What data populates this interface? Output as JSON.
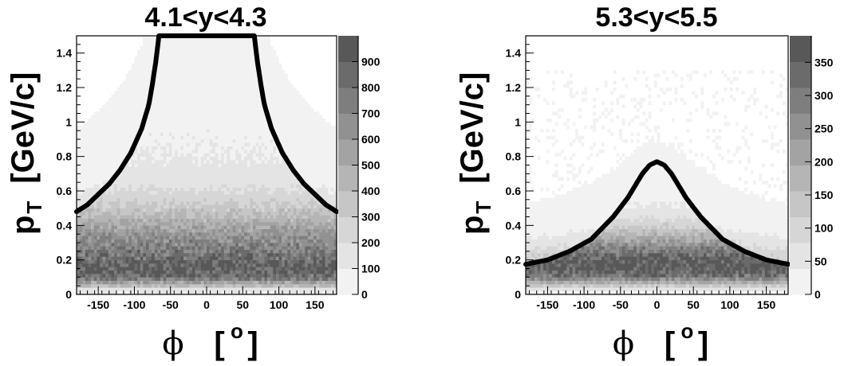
{
  "chart_data": [
    {
      "type": "heatmap",
      "title": "4.1<y<4.3",
      "xlabel_symbol": "ϕ",
      "xlabel_unit_open": "[",
      "xlabel_unit_deg": "o",
      "xlabel_unit_close": "]",
      "ylabel_main": "p",
      "ylabel_sub": "T",
      "ylabel_unit": "[GeV/c]",
      "xlim": [
        -180,
        180
      ],
      "ylim": [
        0,
        1.5
      ],
      "x_ticks": [
        -150,
        -100,
        -50,
        0,
        50,
        100,
        150
      ],
      "y_ticks": [
        0,
        0.2,
        0.4,
        0.6,
        0.8,
        1,
        1.2,
        1.4
      ],
      "y_tick_labels": [
        "0",
        "0.2",
        "0.4",
        "0.6",
        "0.8",
        "1",
        "1.2",
        "1.4"
      ],
      "x_tick_labels": [
        "-150",
        "-100",
        "-50",
        "0",
        "50",
        "100",
        "150"
      ],
      "z_range": [
        0,
        1000
      ],
      "z_ticks": [
        0,
        100,
        200,
        300,
        400,
        500,
        600,
        700,
        800,
        900
      ],
      "z_tick_labels": [
        "0",
        "100",
        "200",
        "300",
        "400",
        "500",
        "600",
        "700",
        "800",
        "900"
      ],
      "z_levels": 10,
      "density_profile_pt": [
        0.02,
        0.06,
        0.1,
        0.14,
        0.18,
        0.22,
        0.26,
        0.3,
        0.34,
        0.38,
        0.42,
        0.46,
        0.5,
        0.54,
        0.58,
        0.62,
        0.66,
        0.7,
        0.74,
        0.8,
        0.9,
        1.0,
        1.2,
        1.4
      ],
      "density_profile_counts": [
        150,
        500,
        820,
        900,
        880,
        820,
        760,
        700,
        640,
        560,
        480,
        400,
        340,
        280,
        230,
        190,
        160,
        140,
        120,
        100,
        90,
        80,
        70,
        60
      ],
      "acceptance_curve": {
        "description_phi": [
          -180,
          -165,
          -150,
          -135,
          -120,
          -105,
          -90,
          -80,
          -75,
          -70,
          -66
        ],
        "description_pt": [
          0.48,
          0.52,
          0.58,
          0.64,
          0.72,
          0.82,
          0.96,
          1.1,
          1.22,
          1.36,
          1.5
        ],
        "symmetric": true
      }
    },
    {
      "type": "heatmap",
      "title": "5.3<y<5.5",
      "xlabel_symbol": "ϕ",
      "xlabel_unit_open": "[",
      "xlabel_unit_deg": "o",
      "xlabel_unit_close": "]",
      "ylabel_main": "p",
      "ylabel_sub": "T",
      "ylabel_unit": "[GeV/c]",
      "xlim": [
        -180,
        180
      ],
      "ylim": [
        0,
        1.5
      ],
      "x_ticks": [
        -150,
        -100,
        -50,
        0,
        50,
        100,
        150
      ],
      "y_ticks": [
        0,
        0.2,
        0.4,
        0.6,
        0.8,
        1,
        1.2,
        1.4
      ],
      "y_tick_labels": [
        "0",
        "0.2",
        "0.4",
        "0.6",
        "0.8",
        "1",
        "1.2",
        "1.4"
      ],
      "x_tick_labels": [
        "-150",
        "-100",
        "-50",
        "0",
        "50",
        "100",
        "150"
      ],
      "z_range": [
        0,
        390
      ],
      "z_ticks": [
        0,
        50,
        100,
        150,
        200,
        250,
        300,
        350
      ],
      "z_tick_labels": [
        "0",
        "50",
        "100",
        "150",
        "200",
        "250",
        "300",
        "350"
      ],
      "z_levels": 10,
      "density_profile_pt": [
        0.02,
        0.06,
        0.1,
        0.14,
        0.18,
        0.22,
        0.26,
        0.3,
        0.34,
        0.38,
        0.42,
        0.46,
        0.5,
        0.56,
        0.62,
        0.7,
        0.8,
        0.9,
        1.0,
        1.1,
        1.2
      ],
      "density_profile_counts": [
        40,
        160,
        300,
        360,
        370,
        340,
        290,
        230,
        180,
        130,
        90,
        65,
        45,
        30,
        20,
        12,
        7,
        4,
        2,
        1,
        0
      ],
      "acceptance_curve": {
        "description_phi": [
          -180,
          -150,
          -120,
          -90,
          -60,
          -40,
          -20,
          -10,
          0
        ],
        "description_pt": [
          0.175,
          0.2,
          0.25,
          0.32,
          0.45,
          0.56,
          0.7,
          0.75,
          0.77
        ],
        "symmetric": true
      }
    }
  ]
}
